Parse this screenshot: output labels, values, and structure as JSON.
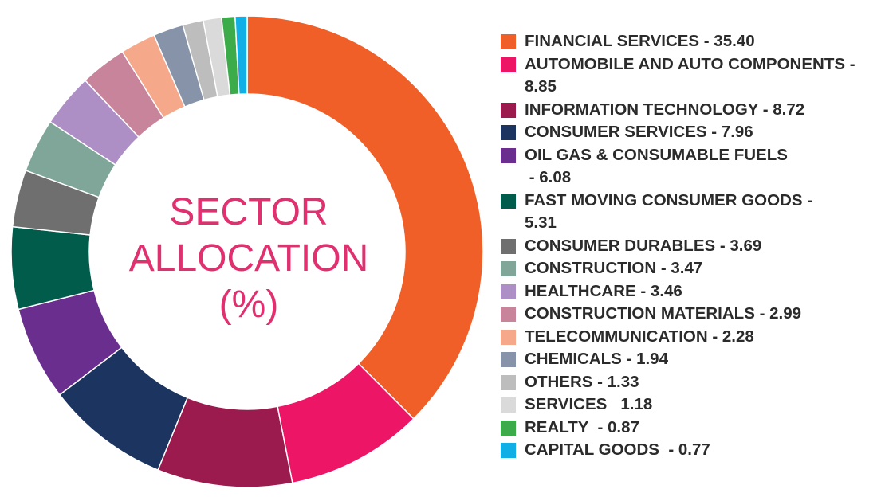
{
  "chart_data": {
    "type": "pie",
    "title_lines": [
      "SECTOR",
      "ALLOCATION",
      "(%)"
    ],
    "slices": [
      {
        "label": "FINANCIAL SERVICES - 35.40",
        "value": 35.4,
        "color": "#f05f28"
      },
      {
        "label": "AUTOMOBILE AND AUTO COMPONENTS - 8.85",
        "value": 8.85,
        "color": "#ec1566"
      },
      {
        "label": "INFORMATION TECHNOLOGY - 8.72",
        "value": 8.72,
        "color": "#9b1b4f"
      },
      {
        "label": "CONSUMER SERVICES - 7.96",
        "value": 7.96,
        "color": "#1c3560"
      },
      {
        "label": "OIL GAS & CONSUMABLE FUELS - 6.08",
        "value": 6.08,
        "color": "#6a2e8e"
      },
      {
        "label": "FAST MOVING CONSUMER GOODS - 5.31",
        "value": 5.31,
        "color": "#025c4b"
      },
      {
        "label": "CONSUMER DURABLES - 3.69",
        "value": 3.69,
        "color": "#6f6f6f"
      },
      {
        "label": "CONSTRUCTION - 3.47",
        "value": 3.47,
        "color": "#7fa699"
      },
      {
        "label": "HEALTHCARE - 3.46",
        "value": 3.46,
        "color": "#ad8fc6"
      },
      {
        "label": "CONSTRUCTION MATERIALS - 2.99",
        "value": 2.99,
        "color": "#c8849b"
      },
      {
        "label": "TELECOMMUNICATION - 2.28",
        "value": 2.28,
        "color": "#f6a88a"
      },
      {
        "label": "CHEMICALS - 1.94",
        "value": 1.94,
        "color": "#8693a8"
      },
      {
        "label": "OTHERS - 1.33",
        "value": 1.33,
        "color": "#bdbdbd"
      },
      {
        "label": "SERVICES   1.18",
        "value": 1.18,
        "color": "#dadada"
      },
      {
        "label": "REALTY  - 0.87",
        "value": 0.87,
        "color": "#3cac4a"
      },
      {
        "label": "CAPITAL GOODS  - 0.77",
        "value": 0.77,
        "color": "#10b0e6"
      }
    ],
    "legend_position": "right"
  },
  "legend_lines": [
    [
      "FINANCIAL SERVICES - 35.40"
    ],
    [
      "AUTOMOBILE AND AUTO COMPONENTS -",
      "8.85"
    ],
    [
      "INFORMATION TECHNOLOGY - 8.72"
    ],
    [
      "CONSUMER SERVICES - 7.96"
    ],
    [
      "OIL GAS & CONSUMABLE FUELS",
      " - 6.08"
    ],
    [
      "FAST MOVING CONSUMER GOODS -",
      "5.31"
    ],
    [
      "CONSUMER DURABLES - 3.69"
    ],
    [
      "CONSTRUCTION - 3.47"
    ],
    [
      "HEALTHCARE - 3.46"
    ],
    [
      "CONSTRUCTION MATERIALS - 2.99"
    ],
    [
      "TELECOMMUNICATION - 2.28"
    ],
    [
      "CHEMICALS - 1.94"
    ],
    [
      "OTHERS - 1.33"
    ],
    [
      "SERVICES   1.18"
    ],
    [
      "REALTY  - 0.87"
    ],
    [
      "CAPITAL GOODS  - 0.77"
    ]
  ]
}
